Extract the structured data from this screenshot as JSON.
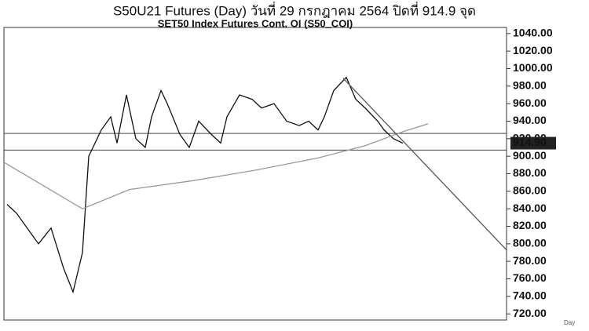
{
  "chart_data": {
    "type": "line",
    "title": "S50U21 Futures (Day) วันที่   29 กรกฎาคม   2564 ปิดที่   914.9 จุด",
    "subtitle": "SET50 Index Futures Cont. OI (S50_COI)",
    "x_label": "Day",
    "xlim": [
      0,
      160
    ],
    "ylim": [
      713,
      1047
    ],
    "yticks": [
      {
        "value": 720,
        "label": "720.00"
      },
      {
        "value": 740,
        "label": "740.00"
      },
      {
        "value": 760,
        "label": "760.00"
      },
      {
        "value": 780,
        "label": "780.00"
      },
      {
        "value": 800,
        "label": "800.00"
      },
      {
        "value": 820,
        "label": "820.00"
      },
      {
        "value": 840,
        "label": "840.00"
      },
      {
        "value": 860,
        "label": "860.00"
      },
      {
        "value": 880,
        "label": "880.00"
      },
      {
        "value": 900,
        "label": "900.00"
      },
      {
        "value": 920,
        "label": "920.00"
      },
      {
        "value": 940,
        "label": "940.00"
      },
      {
        "value": 960,
        "label": "960.00"
      },
      {
        "value": 980,
        "label": "980.00"
      },
      {
        "value": 1000,
        "label": "1000.00"
      },
      {
        "value": 1020,
        "label": "1020.00"
      },
      {
        "value": 1040,
        "label": "1040.00"
      }
    ],
    "last_price": {
      "value": 914.9,
      "label": "914.90"
    },
    "hlines": [
      926,
      907
    ],
    "series": [
      {
        "color": "#111111",
        "x": [
          1,
          4,
          8,
          11,
          15,
          19,
          22,
          25,
          27,
          31,
          34,
          36,
          39,
          42,
          45,
          47,
          50,
          52,
          56,
          59,
          62,
          66,
          69,
          71,
          75,
          79,
          82,
          86,
          90,
          94,
          97,
          100,
          102,
          105,
          109,
          112,
          115,
          119,
          121,
          124,
          127
        ],
        "values": [
          845,
          835,
          815,
          800,
          818,
          772,
          745,
          790,
          900,
          930,
          945,
          915,
          970,
          920,
          910,
          945,
          975,
          960,
          925,
          910,
          940,
          925,
          915,
          945,
          970,
          965,
          955,
          960,
          940,
          935,
          940,
          930,
          945,
          975,
          990,
          965,
          955,
          940,
          930,
          920,
          914.9
        ]
      },
      {
        "color": "#999999",
        "x": [
          0,
          25,
          40,
          60,
          80,
          100,
          115,
          127,
          135
        ],
        "values": [
          893,
          840,
          862,
          872,
          884,
          898,
          912,
          928,
          937
        ]
      },
      {
        "color": "#555555",
        "x": [
          108,
          160
        ],
        "values": [
          989,
          793
        ]
      }
    ]
  }
}
